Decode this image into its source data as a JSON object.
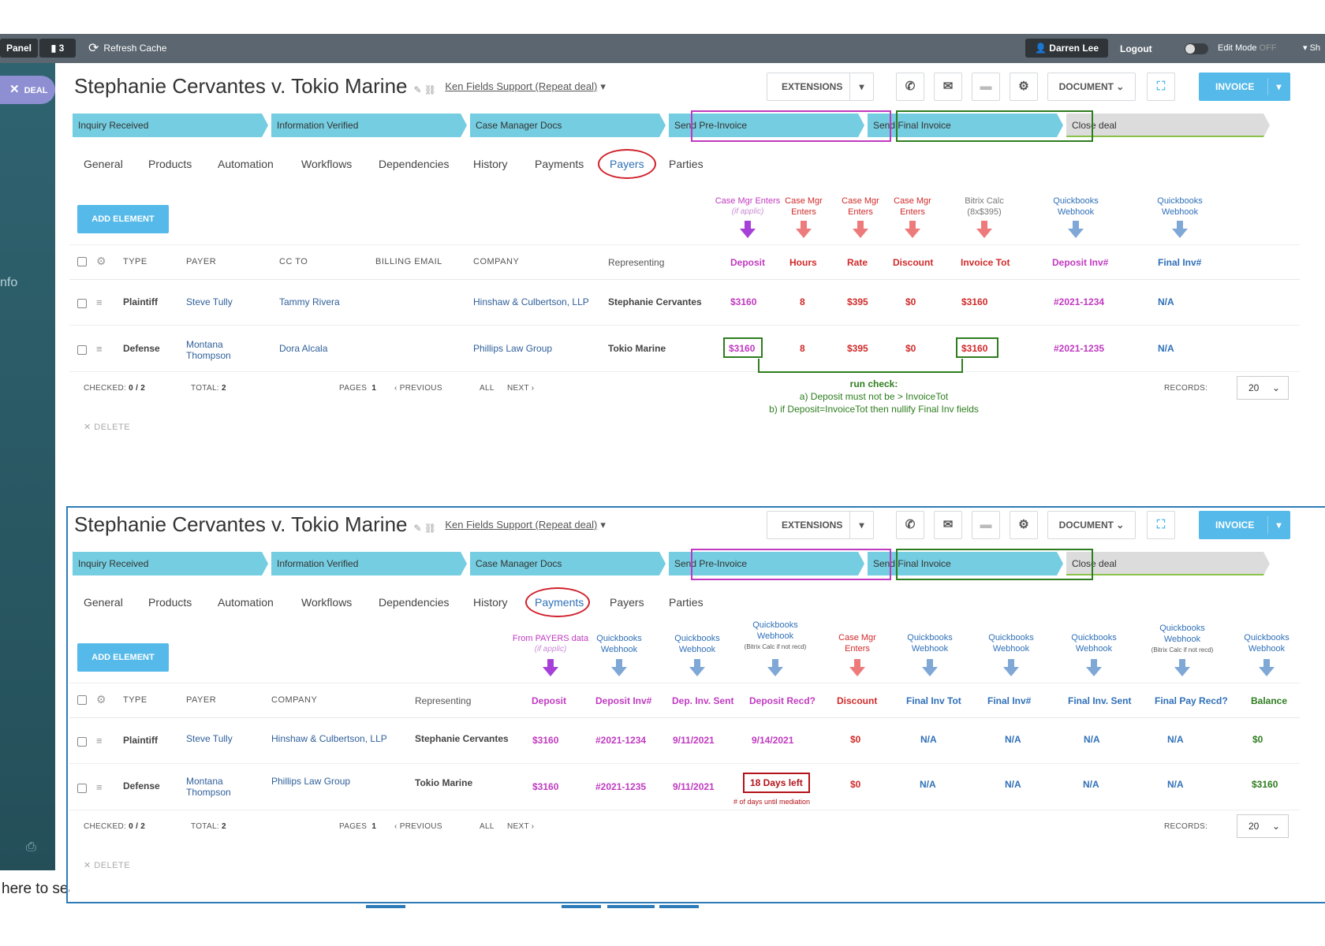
{
  "topbar": {
    "panel_label": "Panel",
    "notif_count": "3",
    "refresh_label": "Refresh Cache",
    "user_name": "Darren Lee",
    "logout_label": "Logout",
    "edit_mode_label": "Edit Mode",
    "edit_mode_state": "OFF",
    "more_label": "Sh"
  },
  "sidebar": {
    "deal_label": "DEAL",
    "info_label": "nfo",
    "search_fragment": "here to sea"
  },
  "deal": {
    "title": "Stephanie Cervantes v. Tokio  Marine",
    "subtitle": "Ken Fields Support (Repeat deal)",
    "buttons": {
      "extensions": "EXTENSIONS",
      "document": "DOCUMENT",
      "invoice": "INVOICE"
    },
    "stages": [
      "Inquiry Received",
      "Information Verified",
      "Case Manager Docs",
      "Send Pre-Invoice",
      "Send Final Invoice",
      "Close deal"
    ],
    "tabs": [
      "General",
      "Products",
      "Automation",
      "Workflows",
      "Dependencies",
      "History",
      "Payments",
      "Payers",
      "Parties"
    ],
    "add_element": "ADD ELEMENT"
  },
  "payers_view": {
    "annotations": [
      {
        "line1": "Case Mgr Enters",
        "line2": "(if applic)",
        "color": "#c03ac0"
      },
      {
        "line1": "Case Mgr",
        "line2": "Enters",
        "color": "#d12a2a"
      },
      {
        "line1": "Case Mgr",
        "line2": "Enters",
        "color": "#d12a2a"
      },
      {
        "line1": "Case Mgr",
        "line2": "Enters",
        "color": "#d12a2a"
      },
      {
        "line1": "Bitrix Calc",
        "line2": "(8x$395)",
        "color": "#777777"
      },
      {
        "line1": "Quickbooks",
        "line2": "Webhook",
        "color": "#2f70b8"
      },
      {
        "line1": "Quickbooks",
        "line2": "Webhook",
        "color": "#2f70b8"
      }
    ],
    "headers": {
      "type": "TYPE",
      "payer": "PAYER",
      "cc_to": "CC TO",
      "billing_email": "BILLING EMAIL",
      "company": "COMPANY",
      "representing": "Representing",
      "deposit": "Deposit",
      "hours": "Hours",
      "rate": "Rate",
      "discount": "Discount",
      "invoice_tot": "Invoice Tot",
      "deposit_inv": "Deposit Inv#",
      "final_inv": "Final Inv#"
    },
    "rows": [
      {
        "type": "Plaintiff",
        "payer": "Steve Tully",
        "payer2": "",
        "cc_to": "Tammy Rivera",
        "company": "Hinshaw & Culbertson, LLP",
        "representing": "Stephanie Cervantes",
        "deposit": "$3160",
        "hours": "8",
        "rate": "$395",
        "discount": "$0",
        "invoice_tot": "$3160",
        "deposit_inv": "#2021-1234",
        "final_inv": "N/A"
      },
      {
        "type": "Defense",
        "payer": "Montana",
        "payer2": "Thompson",
        "cc_to": "Dora Alcala",
        "company": "Phillips Law Group",
        "representing": "Tokio Marine",
        "deposit": "$3160",
        "hours": "8",
        "rate": "$395",
        "discount": "$0",
        "invoice_tot": "$3160",
        "deposit_inv": "#2021-1235",
        "final_inv": "N/A"
      }
    ],
    "run_check": {
      "title": "run check:",
      "line_a": "a) Deposit must not be > InvoiceTot",
      "line_b": "b) if Deposit=InvoiceTot then nullify Final Inv fields"
    }
  },
  "payments_view": {
    "annotations": [
      {
        "line1": "From PAYERS data",
        "line2": "(if applic)",
        "color": "#c03ac0"
      },
      {
        "line1": "Quickbooks",
        "line2": "Webhook",
        "color": "#2f70b8"
      },
      {
        "line1": "Quickbooks",
        "line2": "Webhook",
        "color": "#2f70b8"
      },
      {
        "line1": "Quickbooks",
        "line2": "Webhook",
        "line3": "(Bitrix Calc if not recd)",
        "color": "#2f70b8"
      },
      {
        "line1": "Case Mgr",
        "line2": "Enters",
        "color": "#d12a2a"
      },
      {
        "line1": "Quickbooks",
        "line2": "Webhook",
        "color": "#2f70b8"
      },
      {
        "line1": "Quickbooks",
        "line2": "Webhook",
        "color": "#2f70b8"
      },
      {
        "line1": "Quickbooks",
        "line2": "Webhook",
        "color": "#2f70b8"
      },
      {
        "line1": "Quickbooks",
        "line2": "Webhook",
        "line3": "(Bitrix Calc if not recd)",
        "color": "#2f70b8"
      },
      {
        "line1": "Quickbooks",
        "line2": "Webhook",
        "color": "#2f70b8"
      }
    ],
    "headers": {
      "type": "TYPE",
      "payer": "PAYER",
      "company": "COMPANY",
      "representing": "Representing",
      "deposit": "Deposit",
      "deposit_inv": "Deposit Inv#",
      "dep_inv_sent": "Dep. Inv. Sent",
      "deposit_recd": "Deposit Recd?",
      "discount": "Discount",
      "final_inv_tot": "Final Inv Tot",
      "final_inv": "Final Inv#",
      "final_inv_sent": "Final Inv. Sent",
      "final_pay_recd": "Final Pay Recd?",
      "balance": "Balance"
    },
    "rows": [
      {
        "type": "Plaintiff",
        "payer": "Steve Tully",
        "payer2": "",
        "company": "Hinshaw & Culbertson, LLP",
        "representing": "Stephanie Cervantes",
        "deposit": "$3160",
        "deposit_inv": "#2021-1234",
        "dep_inv_sent": "9/11/2021",
        "deposit_recd": "9/14/2021",
        "discount": "$0",
        "final_inv_tot": "N/A",
        "final_inv": "N/A",
        "final_inv_sent": "N/A",
        "final_pay_recd": "N/A",
        "balance": "$0"
      },
      {
        "type": "Defense",
        "payer": "Montana",
        "payer2": "Thompson",
        "company": "Phillips Law Group",
        "representing": "Tokio Marine",
        "deposit": "$3160",
        "deposit_inv": "#2021-1235",
        "dep_inv_sent": "9/11/2021",
        "deposit_recd": "18 Days left",
        "discount": "$0",
        "final_inv_tot": "N/A",
        "final_inv": "N/A",
        "final_inv_sent": "N/A",
        "final_pay_recd": "N/A",
        "balance": "$3160"
      }
    ],
    "days_note": "# of days until mediation"
  },
  "footer": {
    "checked_label": "CHECKED:",
    "checked_value": "0 / 2",
    "total_label": "TOTAL:",
    "total_value": "2",
    "pages_label": "PAGES",
    "page_value": "1",
    "previous": "PREVIOUS",
    "all": "ALL",
    "next": "NEXT",
    "records_label": "RECORDS:",
    "records_value": "20",
    "delete": "DELETE"
  },
  "colors": {
    "accent": "#55b9e9",
    "stage": "#74cde0",
    "pre_invoice_box": "#c03ac0",
    "final_invoice_box": "#2e7d1f",
    "tab_ring": "#d0202a",
    "sidebar": "#2f6370",
    "selection_frame": "#2c7bb8"
  }
}
